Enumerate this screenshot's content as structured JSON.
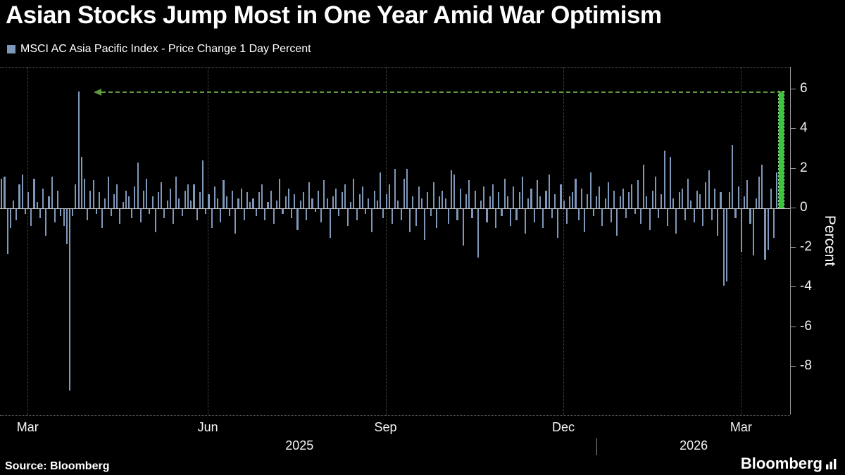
{
  "header": {
    "title": "Asian Stocks Jump Most in One Year Amid War Optimism",
    "legend": {
      "swatch_color": "#7f97b9",
      "label": "MSCI AC Asia Pacific Index - Price Change 1 Day Percent"
    }
  },
  "footer": {
    "source": "Source: Bloomberg",
    "logo_text": "Bloomberg",
    "logo_icon": "bar-chart-icon"
  },
  "chart_data": {
    "type": "bar",
    "title": "Asian Stocks Jump Most in One Year Amid War Optimism",
    "series_name": "MSCI AC Asia Pacific Index - Price Change 1 Day Percent",
    "xlabel": "",
    "ylabel": "Percent",
    "ylim": [
      -10.45,
      7.1
    ],
    "yticks": [
      6,
      4,
      2,
      0,
      -2,
      -4,
      -6,
      -8
    ],
    "grid": "dotted vertical at quarter ticks, dotted top and bottom frame",
    "legend_position": "top-left",
    "bar_color": "#7f97b9",
    "highlight_last": true,
    "highlight_color": "#3dc33d",
    "highlight_value": 5.9,
    "x_ticks": [
      {
        "label": "Mar",
        "pos_pct": 3.5
      },
      {
        "label": "Jun",
        "pos_pct": 26.3
      },
      {
        "label": "Sep",
        "pos_pct": 48.8
      },
      {
        "label": "Dec",
        "pos_pct": 71.3
      },
      {
        "label": "Mar",
        "pos_pct": 93.8
      }
    ],
    "year_labels": [
      {
        "label": "2025",
        "pos_pct": 37.9
      },
      {
        "label": "2026",
        "pos_pct": 87.8
      }
    ],
    "year_divider_pct": 75.5,
    "annotation": {
      "type": "dashed-arrow-left",
      "y_value": 5.9,
      "from_pct": 12.8,
      "to_pct": 98.9,
      "color": "#5d9a3e"
    },
    "values": [
      1.5,
      1.6,
      -2.3,
      -1.0,
      0.4,
      -0.6,
      1.2,
      1.7,
      -0.3,
      0.8,
      -0.9,
      1.5,
      0.3,
      -0.5,
      1.0,
      -1.4,
      0.6,
      1.6,
      -0.7,
      0.9,
      -0.4,
      -0.9,
      -1.8,
      -9.2,
      -0.4,
      1.2,
      5.9,
      2.6,
      1.5,
      -0.6,
      0.9,
      1.4,
      -0.3,
      0.8,
      -1.0,
      0.5,
      1.6,
      -0.4,
      0.7,
      1.2,
      -0.8,
      0.3,
      0.9,
      0.6,
      -0.5,
      1.1,
      2.3,
      -0.7,
      0.9,
      1.5,
      -0.3,
      0.6,
      -1.2,
      0.8,
      1.3,
      -0.5,
      0.4,
      1.0,
      -0.8,
      1.6,
      0.5,
      -0.4,
      0.9,
      1.2,
      0.4,
      1.2,
      -0.6,
      0.8,
      2.4,
      -0.3,
      0.7,
      -1.0,
      1.1,
      0.5,
      -0.7,
      1.4,
      0.6,
      -0.4,
      0.9,
      -1.3,
      0.5,
      1.0,
      -0.6,
      0.8,
      0.3,
      0.5,
      -0.4,
      0.8,
      1.2,
      -0.6,
      0.3,
      0.9,
      -0.8,
      0.4,
      1.5,
      -0.3,
      0.6,
      1.0,
      -0.5,
      0.7,
      -1.1,
      0.4,
      0.8,
      -0.6,
      1.3,
      0.5,
      -0.2,
      0.9,
      -0.7,
      1.4,
      0.5,
      -1.5,
      0.6,
      1.0,
      -0.4,
      0.8,
      1.2,
      -0.9,
      0.3,
      1.5,
      -0.6,
      0.7,
      1.1,
      -0.3,
      0.5,
      -1.2,
      0.9,
      0.4,
      1.8,
      -0.5,
      0.7,
      1.2,
      -0.8,
      2.0,
      0.4,
      -0.6,
      1.5,
      2.0,
      -1.2,
      0.6,
      -0.9,
      1.1,
      0.5,
      -1.6,
      0.8,
      -0.4,
      1.3,
      -1.0,
      0.6,
      0.9,
      0.5,
      -0.8,
      1.9,
      1.7,
      -0.6,
      1.0,
      -1.9,
      0.7,
      1.4,
      -0.5,
      0.9,
      -2.5,
      0.4,
      1.1,
      -0.7,
      0.6,
      1.2,
      -1.0,
      0.8,
      -0.4,
      1.5,
      0.6,
      -0.9,
      1.1,
      -0.6,
      0.8,
      1.6,
      -1.3,
      0.5,
      1.0,
      -0.7,
      1.4,
      0.6,
      -1.0,
      0.9,
      1.7,
      -0.5,
      0.7,
      -1.5,
      1.2,
      0.4,
      -0.8,
      0.6,
      0.8,
      1.5,
      -0.6,
      1.0,
      -1.2,
      0.7,
      1.8,
      -0.4,
      0.6,
      1.1,
      -0.9,
      0.5,
      1.3,
      -0.7,
      0.9,
      -1.4,
      0.6,
      1.0,
      -0.5,
      0.8,
      1.2,
      -0.3,
      1.4,
      -0.8,
      2.2,
      0.6,
      -1.1,
      0.9,
      1.6,
      -0.5,
      0.7,
      2.9,
      -0.9,
      2.6,
      0.5,
      -1.3,
      0.8,
      1.0,
      -0.6,
      1.5,
      0.4,
      -0.7,
      0.9,
      0.7,
      -0.9,
      1.3,
      1.9,
      -0.6,
      1.0,
      -1.4,
      0.8,
      -3.9,
      -3.7,
      0.8,
      3.2,
      -0.5,
      1.1,
      -2.2,
      0.6,
      1.4,
      -0.8,
      -2.4,
      0.5,
      1.6,
      2.2,
      -2.6,
      -2.1,
      1.0,
      -1.5,
      1.8,
      5.9
    ]
  }
}
